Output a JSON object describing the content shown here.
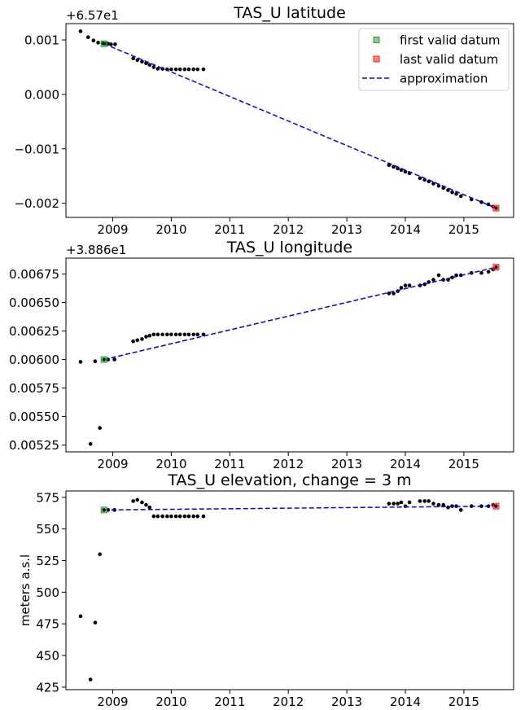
{
  "chart_data": [
    {
      "type": "scatter",
      "title": "TAS_U latitude",
      "offset_label": "+6.57e1",
      "xlabel": "",
      "ylabel": "",
      "xlim": [
        2008.2,
        2015.85
      ],
      "ylim": [
        -0.00226,
        0.0013
      ],
      "xticks": [
        2009,
        2010,
        2011,
        2012,
        2013,
        2014,
        2015
      ],
      "yticks": [
        0.001,
        0.0,
        -0.001,
        -0.002
      ],
      "ytick_labels": [
        "0.001",
        "0.000",
        "−0.001",
        "−0.002"
      ],
      "legend": {
        "placement": "top-right",
        "entries": [
          {
            "label": "first valid datum",
            "color": "#2ca02c",
            "marker": "square"
          },
          {
            "label": "last valid datum",
            "color": "#ff2020",
            "marker": "square"
          },
          {
            "label": "approximation",
            "color": "#0000ff",
            "marker": "dashed-line"
          }
        ]
      },
      "series": [
        {
          "name": "data",
          "color": "#000000",
          "x": [
            2008.45,
            2008.58,
            2008.67,
            2008.75,
            2008.83,
            2008.88,
            2008.92,
            2008.97,
            2009.04,
            2009.35,
            2009.42,
            2009.5,
            2009.57,
            2009.63,
            2009.7,
            2009.77,
            2009.85,
            2009.93,
            2010.0,
            2010.08,
            2010.15,
            2010.23,
            2010.3,
            2010.38,
            2010.45,
            2010.55,
            2013.72,
            2013.8,
            2013.87,
            2013.93,
            2014.0,
            2014.07,
            2014.25,
            2014.33,
            2014.4,
            2014.48,
            2014.57,
            2014.65,
            2014.73,
            2014.8,
            2014.87,
            2014.95,
            2015.13,
            2015.3,
            2015.42,
            2015.5,
            2015.55
          ],
          "y": [
            0.00116,
            0.00105,
            0.00099,
            0.00095,
            0.00094,
            0.00093,
            0.00093,
            0.00092,
            0.00092,
            0.00066,
            0.00063,
            0.0006,
            0.00057,
            0.00054,
            0.0005,
            0.00047,
            0.00047,
            0.00046,
            0.00046,
            0.00046,
            0.00046,
            0.00046,
            0.00046,
            0.00046,
            0.00046,
            0.00046,
            -0.0013,
            -0.00133,
            -0.00136,
            -0.00139,
            -0.00142,
            -0.00145,
            -0.00154,
            -0.00157,
            -0.0016,
            -0.00164,
            -0.00168,
            -0.00172,
            -0.00176,
            -0.0018,
            -0.00183,
            -0.00187,
            -0.00193,
            -0.00198,
            -0.00202,
            -0.00206,
            -0.00209
          ]
        }
      ],
      "first_valid": {
        "x": 2008.85,
        "y": 0.00093
      },
      "last_valid": {
        "x": 2015.55,
        "y": -0.00209
      },
      "approximation": {
        "x": [
          2008.85,
          2015.55
        ],
        "y": [
          0.00093,
          -0.00209
        ]
      }
    },
    {
      "type": "scatter",
      "title": "TAS_U longitude",
      "offset_label": "+3.886e1",
      "xlabel": "",
      "ylabel": "",
      "xlim": [
        2008.2,
        2015.85
      ],
      "ylim": [
        0.00519,
        0.00689
      ],
      "xticks": [
        2009,
        2010,
        2011,
        2012,
        2013,
        2014,
        2015
      ],
      "yticks": [
        0.00675,
        0.0065,
        0.00625,
        0.006,
        0.00575,
        0.0055,
        0.00525
      ],
      "ytick_labels": [
        "0.00675",
        "0.00650",
        "0.00625",
        "0.00600",
        "0.00575",
        "0.00550",
        "0.00525"
      ],
      "series": [
        {
          "name": "data",
          "color": "#000000",
          "x": [
            2008.45,
            2008.62,
            2008.7,
            2008.78,
            2008.85,
            2008.92,
            2009.03,
            2009.35,
            2009.42,
            2009.5,
            2009.57,
            2009.63,
            2009.7,
            2009.77,
            2009.85,
            2009.93,
            2010.0,
            2010.08,
            2010.15,
            2010.23,
            2010.3,
            2010.38,
            2010.45,
            2010.55,
            2013.72,
            2013.8,
            2013.87,
            2013.93,
            2014.0,
            2014.07,
            2014.25,
            2014.33,
            2014.4,
            2014.48,
            2014.57,
            2014.65,
            2014.73,
            2014.8,
            2014.87,
            2014.95,
            2015.13,
            2015.3,
            2015.42,
            2015.5,
            2015.55
          ],
          "y": [
            0.00598,
            0.00526,
            0.005985,
            0.0054,
            0.006,
            0.006,
            0.006,
            0.00616,
            0.00617,
            0.00618,
            0.0062,
            0.00621,
            0.00622,
            0.00622,
            0.00622,
            0.00622,
            0.00622,
            0.00622,
            0.00622,
            0.00622,
            0.00622,
            0.00622,
            0.00622,
            0.00622,
            0.00658,
            0.00658,
            0.0066,
            0.00663,
            0.00665,
            0.00665,
            0.00665,
            0.00666,
            0.00668,
            0.0067,
            0.00674,
            0.0067,
            0.0067,
            0.00672,
            0.00674,
            0.00674,
            0.00676,
            0.00676,
            0.00677,
            0.00679,
            0.00681
          ]
        }
      ],
      "first_valid": {
        "x": 2008.85,
        "y": 0.006
      },
      "last_valid": {
        "x": 2015.55,
        "y": 0.00681
      },
      "approximation": {
        "x": [
          2008.85,
          2015.55
        ],
        "y": [
          0.006,
          0.00681
        ]
      }
    },
    {
      "type": "scatter",
      "title": "TAS_U elevation, change = 3 m",
      "offset_label": "",
      "xlabel": "",
      "ylabel": "meters a.s.l",
      "xlim": [
        2008.2,
        2015.85
      ],
      "ylim": [
        423,
        580
      ],
      "xticks": [
        2009,
        2010,
        2011,
        2012,
        2013,
        2014,
        2015
      ],
      "yticks": [
        575,
        550,
        525,
        500,
        475,
        450,
        425
      ],
      "ytick_labels": [
        "575",
        "550",
        "525",
        "500",
        "475",
        "450",
        "425"
      ],
      "series": [
        {
          "name": "data",
          "color": "#000000",
          "x": [
            2008.45,
            2008.62,
            2008.7,
            2008.78,
            2008.85,
            2008.92,
            2009.03,
            2009.35,
            2009.42,
            2009.5,
            2009.57,
            2009.63,
            2009.7,
            2009.77,
            2009.85,
            2009.93,
            2010.0,
            2010.08,
            2010.15,
            2010.23,
            2010.3,
            2010.38,
            2010.45,
            2010.55,
            2013.72,
            2013.8,
            2013.87,
            2013.93,
            2014.0,
            2014.07,
            2014.25,
            2014.33,
            2014.4,
            2014.48,
            2014.57,
            2014.65,
            2014.73,
            2014.8,
            2014.87,
            2014.95,
            2015.13,
            2015.3,
            2015.42,
            2015.5,
            2015.55
          ],
          "y": [
            481,
            431,
            476,
            530,
            565,
            565,
            565,
            572,
            573,
            571,
            569,
            567,
            560,
            560,
            560,
            560,
            560,
            560,
            560,
            560,
            560,
            560,
            560,
            560,
            570,
            570,
            570,
            571,
            568,
            571,
            572,
            572,
            572,
            570,
            569,
            569,
            567,
            568,
            568,
            565,
            568,
            568,
            568,
            569,
            568
          ]
        }
      ],
      "first_valid": {
        "x": 2008.85,
        "y": 565
      },
      "last_valid": {
        "x": 2015.55,
        "y": 568
      },
      "approximation": {
        "x": [
          2008.85,
          2015.55
        ],
        "y": [
          565,
          568
        ]
      }
    }
  ]
}
